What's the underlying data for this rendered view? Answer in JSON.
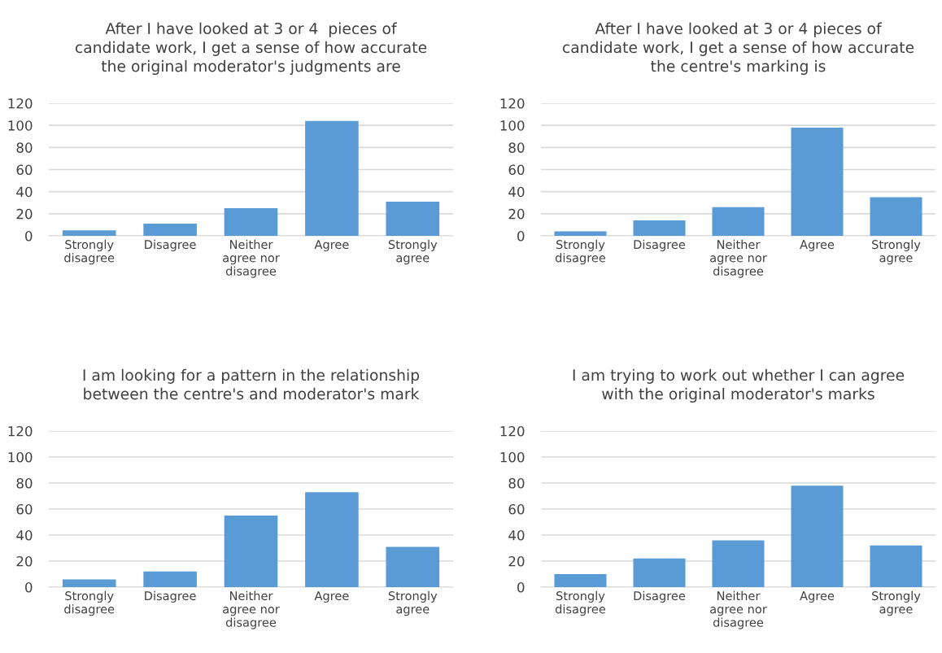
{
  "chart_data": [
    {
      "type": "bar",
      "title": "After I have looked at 3 or 4  pieces of\ncandidate work, I get a sense of how accurate\nthe original moderator's judgments are",
      "categories": [
        "Strongly\ndisagree",
        "Disagree",
        "Neither\nagree nor\ndisagree",
        "Agree",
        "Strongly\nagree"
      ],
      "values": [
        5,
        11,
        25,
        104,
        31
      ],
      "color": "#5b9bd5",
      "ylim": [
        0,
        120
      ],
      "yticks": [
        0,
        20,
        40,
        60,
        80,
        100,
        120
      ],
      "grid": "y"
    },
    {
      "type": "bar",
      "title": "After I have looked at 3 or 4 pieces of\ncandidate work, I get a sense of how accurate\nthe centre's marking is",
      "categories": [
        "Strongly\ndisagree",
        "Disagree",
        "Neither\nagree nor\ndisagree",
        "Agree",
        "Strongly\nagree"
      ],
      "values": [
        4,
        14,
        26,
        98,
        35
      ],
      "color": "#5b9bd5",
      "ylim": [
        0,
        120
      ],
      "yticks": [
        0,
        20,
        40,
        60,
        80,
        100,
        120
      ],
      "grid": "y"
    },
    {
      "type": "bar",
      "title": "I am looking for a pattern in the relationship\nbetween the centre's and moderator's mark",
      "categories": [
        "Strongly\ndisagree",
        "Disagree",
        "Neither\nagree nor\ndisagree",
        "Agree",
        "Strongly\nagree"
      ],
      "values": [
        6,
        12,
        55,
        73,
        31
      ],
      "color": "#5b9bd5",
      "ylim": [
        0,
        120
      ],
      "yticks": [
        0,
        20,
        40,
        60,
        80,
        100,
        120
      ],
      "grid": "y"
    },
    {
      "type": "bar",
      "title": "I am trying to work out whether I can agree\nwith the original moderator's marks",
      "categories": [
        "Strongly\ndisagree",
        "Disagree",
        "Neither\nagree nor\ndisagree",
        "Agree",
        "Strongly\nagree"
      ],
      "values": [
        10,
        22,
        36,
        78,
        32
      ],
      "color": "#5b9bd5",
      "ylim": [
        0,
        120
      ],
      "yticks": [
        0,
        20,
        40,
        60,
        80,
        100,
        120
      ],
      "grid": "y"
    }
  ]
}
